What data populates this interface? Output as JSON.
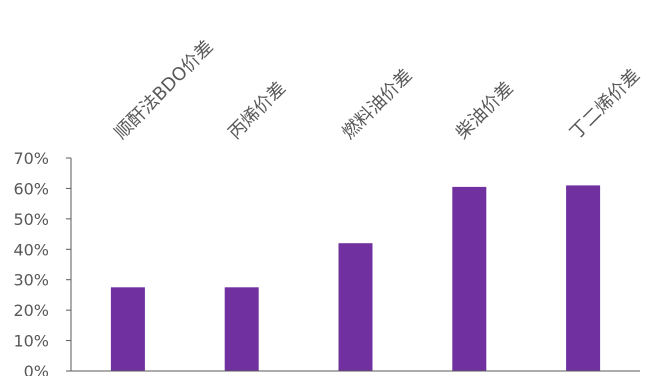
{
  "chart_data": {
    "type": "bar",
    "categories": [
      "顺酐法BDO价差",
      "丙烯价差",
      "燃料油价差",
      "柴油价差",
      "丁二烯价差"
    ],
    "values": [
      0.275,
      0.275,
      0.42,
      0.605,
      0.61
    ],
    "ylim": [
      0,
      0.7
    ],
    "yticks": [
      0,
      0.1,
      0.2,
      0.3,
      0.4,
      0.5,
      0.6,
      0.7
    ],
    "ytick_labels": [
      "0%",
      "10%",
      "20%",
      "30%",
      "40%",
      "50%",
      "60%",
      "70%"
    ],
    "bar_color": "#7030A0",
    "axis_color": "#595959",
    "grid": false,
    "legend": "none"
  }
}
